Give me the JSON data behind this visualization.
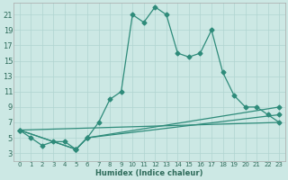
{
  "xlabel": "Humidex (Indice chaleur)",
  "bg_color": "#cce8e4",
  "grid_color": "#b0d4d0",
  "line_color": "#2e8b7a",
  "xlim": [
    -0.5,
    23.5
  ],
  "ylim": [
    2.0,
    22.5
  ],
  "yticks": [
    3,
    5,
    7,
    9,
    11,
    13,
    15,
    17,
    19,
    21
  ],
  "xticks": [
    0,
    1,
    2,
    3,
    4,
    5,
    6,
    7,
    8,
    9,
    10,
    11,
    12,
    13,
    14,
    15,
    16,
    17,
    18,
    19,
    20,
    21,
    22,
    23
  ],
  "curve1_x": [
    0,
    1,
    2,
    3,
    4,
    5,
    6,
    7,
    8,
    9,
    10,
    11,
    12,
    13,
    14,
    15,
    16,
    17,
    18,
    19,
    20,
    21,
    22,
    23
  ],
  "curve1_y": [
    6.0,
    5.0,
    4.0,
    4.5,
    4.5,
    3.5,
    5.0,
    7.0,
    10.0,
    11.0,
    21.0,
    20.0,
    22.0,
    21.0,
    16.0,
    15.5,
    16.0,
    19.0,
    13.5,
    10.5,
    9.0,
    9.0,
    8.0,
    7.0
  ],
  "curve2_x": [
    0,
    5,
    6,
    23
  ],
  "curve2_y": [
    6.0,
    3.5,
    5.0,
    9.0
  ],
  "curve3_x": [
    0,
    5,
    6,
    23
  ],
  "curve3_y": [
    6.0,
    3.5,
    5.0,
    8.0
  ],
  "curve4_x": [
    0,
    23
  ],
  "curve4_y": [
    6.0,
    7.0
  ]
}
